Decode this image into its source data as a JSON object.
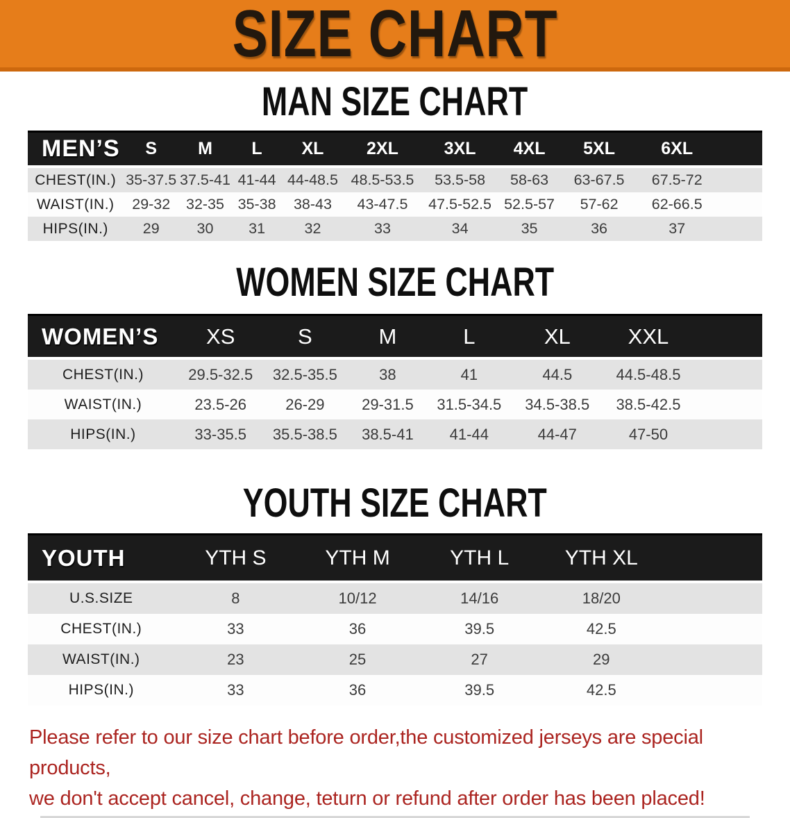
{
  "banner": {
    "title": "SIZE CHART"
  },
  "colors": {
    "banner_bg": "#e67d1a",
    "banner_edge": "#cd680d",
    "table_header_bg": "#1b1b1b",
    "row_shaded": "#e3e3e3",
    "row_plain": "#fdfdfd",
    "note_red": "#ab2420"
  },
  "sections": [
    {
      "heading": "MAN SIZE CHART",
      "table": {
        "group_label": "MEN’S",
        "size_headers": [
          "S",
          "M",
          "L",
          "XL",
          "2XL",
          "3XL",
          "4XL",
          "5XL",
          "6XL"
        ],
        "rows": [
          {
            "label": "CHEST(IN.)",
            "values": [
              "35-37.5",
              "37.5-41",
              "41-44",
              "44-48.5",
              "48.5-53.5",
              "53.5-58",
              "58-63",
              "63-67.5",
              "67.5-72"
            ]
          },
          {
            "label": "WAIST(IN.)",
            "values": [
              "29-32",
              "32-35",
              "35-38",
              "38-43",
              "43-47.5",
              "47.5-52.5",
              "52.5-57",
              "57-62",
              "62-66.5"
            ]
          },
          {
            "label": "HIPS(IN.)",
            "values": [
              "29",
              "30",
              "31",
              "32",
              "33",
              "34",
              "35",
              "36",
              "37"
            ]
          }
        ]
      }
    },
    {
      "heading": "WOMEN SIZE CHART",
      "table": {
        "group_label": "WOMEN’S",
        "size_headers": [
          "XS",
          "S",
          "M",
          "L",
          "XL",
          "XXL"
        ],
        "rows": [
          {
            "label": "CHEST(IN.)",
            "values": [
              "29.5-32.5",
              "32.5-35.5",
              "38",
              "41",
              "44.5",
              "44.5-48.5"
            ]
          },
          {
            "label": "WAIST(IN.)",
            "values": [
              "23.5-26",
              "26-29",
              "29-31.5",
              "31.5-34.5",
              "34.5-38.5",
              "38.5-42.5"
            ]
          },
          {
            "label": "HIPS(IN.)",
            "values": [
              "33-35.5",
              "35.5-38.5",
              "38.5-41",
              "41-44",
              "44-47",
              "47-50"
            ]
          }
        ]
      }
    },
    {
      "heading": "YOUTH SIZE CHART",
      "table": {
        "group_label": "YOUTH",
        "size_headers": [
          "YTH S",
          "YTH M",
          "YTH L",
          "YTH XL"
        ],
        "rows": [
          {
            "label": "U.S.SIZE",
            "values": [
              "8",
              "10/12",
              "14/16",
              "18/20"
            ]
          },
          {
            "label": "CHEST(IN.)",
            "values": [
              "33",
              "36",
              "39.5",
              "42.5"
            ]
          },
          {
            "label": "WAIST(IN.)",
            "values": [
              "23",
              "25",
              "27",
              "29"
            ]
          },
          {
            "label": "HIPS(IN.)",
            "values": [
              "33",
              "36",
              "39.5",
              "42.5"
            ]
          }
        ]
      }
    }
  ],
  "note": {
    "line1": "Please refer to our size chart before order,the customized jerseys are special products,",
    "line2": "we don't accept cancel, change, teturn or refund after order has been placed!"
  }
}
